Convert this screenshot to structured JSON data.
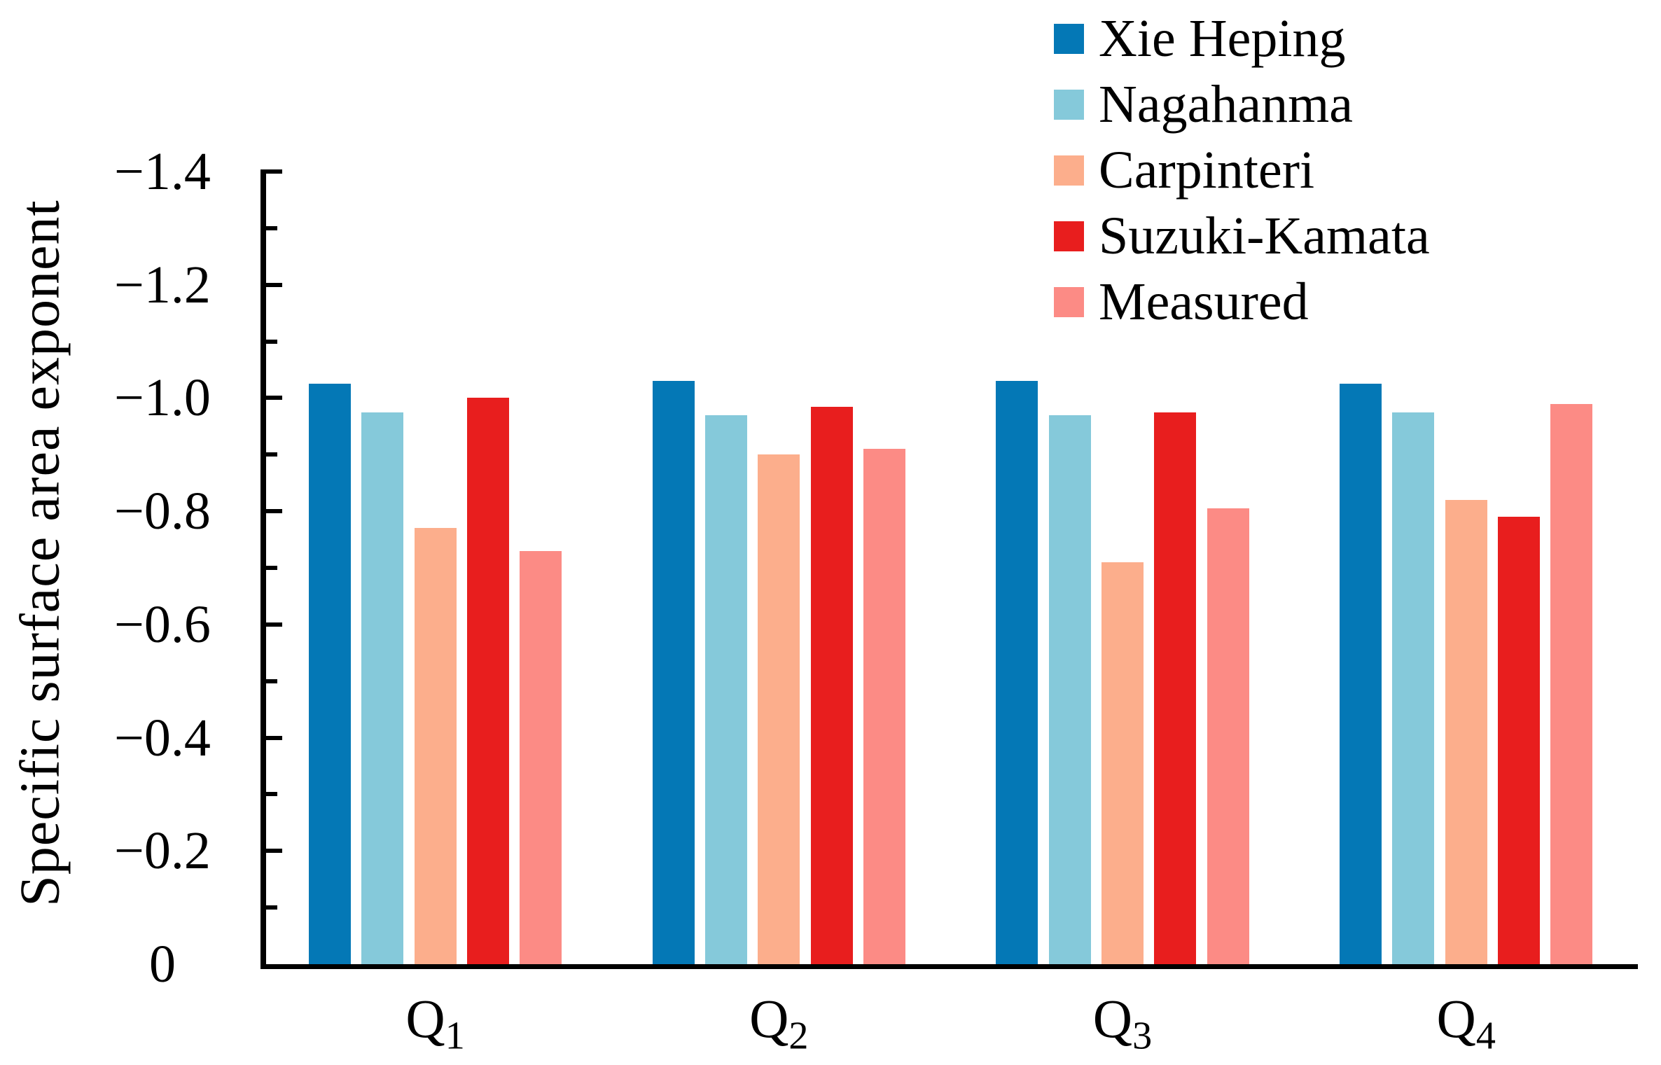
{
  "chart_data": {
    "type": "bar",
    "title": "",
    "xlabel": "",
    "ylabel": "Specific surface area exponent",
    "ylim": [
      0,
      -1.4
    ],
    "y_axis_inverted": true,
    "grid": false,
    "legend_position": "top-right",
    "axis_color": "#000000",
    "background_color": "#FFFFFF",
    "yticks": [
      -1.4,
      -1.2,
      -1.0,
      -0.8,
      -0.6,
      -0.4,
      -0.2,
      0
    ],
    "ytick_labels": [
      "−1.4",
      "−1.2",
      "−1.0",
      "−0.8",
      "−0.6",
      "−0.4",
      "−0.2",
      "0"
    ],
    "minor_tick_step": 0.1,
    "categories": [
      "Q1",
      "Q2",
      "Q3",
      "Q4"
    ],
    "category_labels": [
      {
        "base": "Q",
        "sub": "1"
      },
      {
        "base": "Q",
        "sub": "2"
      },
      {
        "base": "Q",
        "sub": "3"
      },
      {
        "base": "Q",
        "sub": "4"
      }
    ],
    "series": [
      {
        "name": "Xie Heping",
        "color": "#0478B6",
        "values": [
          -1.025,
          -1.03,
          -1.03,
          -1.025
        ]
      },
      {
        "name": "Nagahanma",
        "color": "#85C9DA",
        "values": [
          -0.975,
          -0.97,
          -0.97,
          -0.975
        ]
      },
      {
        "name": "Carpinteri",
        "color": "#FCAE8C",
        "values": [
          -0.77,
          -0.9,
          -0.71,
          -0.82
        ]
      },
      {
        "name": "Suzuki-Kamata",
        "color": "#E81E1E",
        "values": [
          -1.0,
          -0.985,
          -0.975,
          -0.79
        ]
      },
      {
        "name": "Measured",
        "color": "#FC8B85",
        "values": [
          -0.73,
          -0.91,
          -0.805,
          -0.99
        ]
      }
    ]
  }
}
